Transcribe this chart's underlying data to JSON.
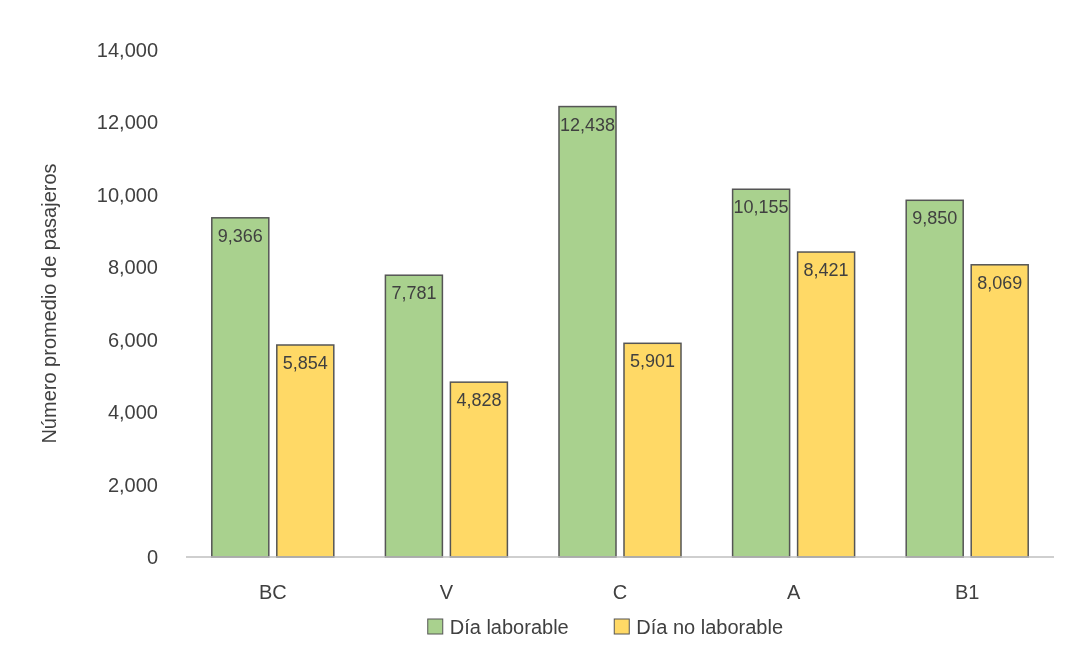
{
  "chart_data": {
    "type": "bar",
    "ylabel": "Número promedio de pasajeros",
    "categories": [
      "BC",
      "V",
      "C",
      "A",
      "B1"
    ],
    "series": [
      {
        "name": "Día laborable",
        "color": "#a9d18e",
        "values": [
          9366,
          7781,
          12438,
          10155,
          9850
        ],
        "value_labels": [
          "9,366",
          "7,781",
          "12,438",
          "10,155",
          "9,850"
        ]
      },
      {
        "name": "Día no laborable",
        "color": "#ffd966",
        "values": [
          5854,
          4828,
          5901,
          8421,
          8069
        ],
        "value_labels": [
          "5,854",
          "4,828",
          "5,901",
          "8,421",
          "8,069"
        ]
      }
    ],
    "ylim": [
      0,
      14000
    ],
    "yticks": [
      {
        "value": 0,
        "label": "0"
      },
      {
        "value": 2000,
        "label": "2,000"
      },
      {
        "value": 4000,
        "label": "4,000"
      },
      {
        "value": 6000,
        "label": "6,000"
      },
      {
        "value": 8000,
        "label": "8,000"
      },
      {
        "value": 10000,
        "label": "10,000"
      },
      {
        "value": 12000,
        "label": "12,000"
      },
      {
        "value": 14000,
        "label": "14,000"
      }
    ],
    "grid": false,
    "legend": "bottom"
  }
}
